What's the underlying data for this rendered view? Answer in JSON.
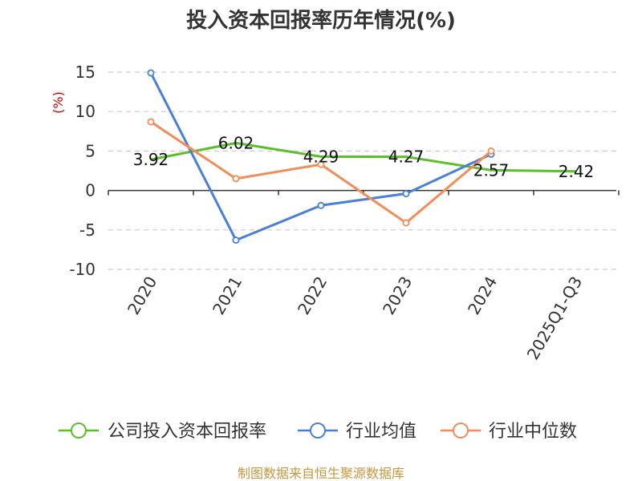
{
  "chart_data": {
    "type": "line",
    "title": "投入资本回报率历年情况(%)",
    "unit": "(%)",
    "categories": [
      "2020",
      "2021",
      "2022",
      "2023",
      "2024",
      "2025Q1-Q3"
    ],
    "ylim": [
      -10,
      15
    ],
    "yticks": [
      15,
      10,
      5,
      0,
      -5,
      -10
    ],
    "grid": true,
    "legend_position": "bottom",
    "series": [
      {
        "name": "公司投入资本回报率",
        "color": "#5cbf2a",
        "values": [
          3.92,
          6.02,
          4.29,
          4.27,
          2.57,
          2.42
        ],
        "labels": [
          "3.92",
          "6.02",
          "4.29",
          "4.27",
          "2.57",
          "2.42"
        ]
      },
      {
        "name": "行业均值",
        "color": "#4a7fd9",
        "values": [
          14.9,
          -6.3,
          -1.9,
          -0.4,
          4.6,
          null
        ]
      },
      {
        "name": "行业中位数",
        "color": "#f28d58",
        "values": [
          8.7,
          1.5,
          3.3,
          -4.1,
          5.0,
          null
        ]
      }
    ]
  },
  "source": "制图数据来自恒生聚源数据库"
}
